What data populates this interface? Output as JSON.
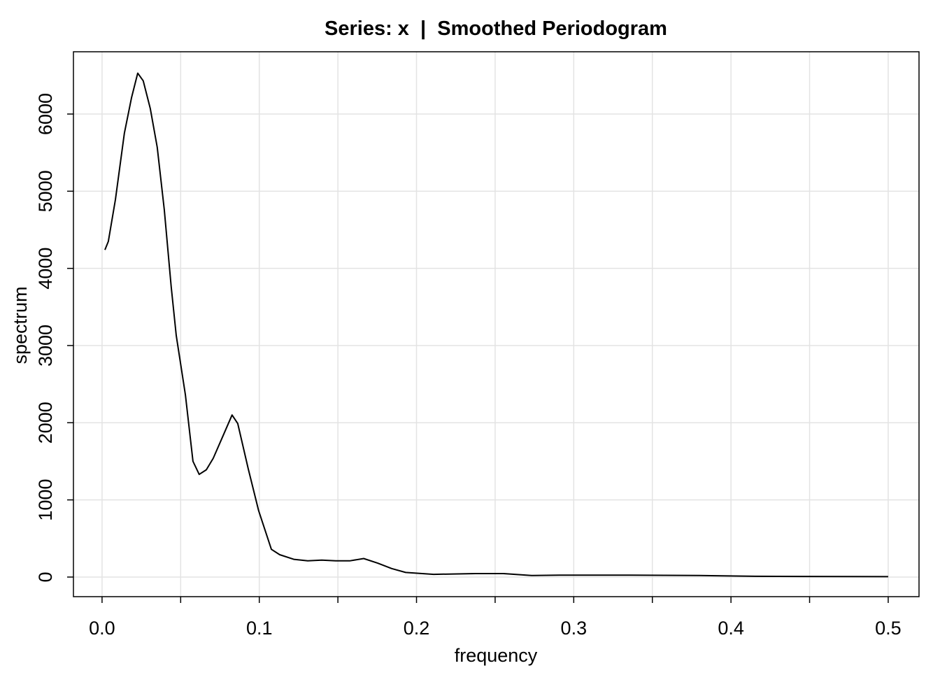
{
  "chart_data": {
    "type": "line",
    "title": "Series: x  |  Smoothed Periodogram",
    "x_label": "frequency",
    "y_label": "spectrum",
    "x": [
      0.0018,
      0.004,
      0.0085,
      0.0142,
      0.0187,
      0.0227,
      0.0262,
      0.0307,
      0.0351,
      0.0396,
      0.044,
      0.0472,
      0.053,
      0.0578,
      0.0618,
      0.0663,
      0.0707,
      0.0765,
      0.0827,
      0.0863,
      0.093,
      0.0996,
      0.1077,
      0.113,
      0.1219,
      0.1308,
      0.1397,
      0.1486,
      0.1575,
      0.1664,
      0.1753,
      0.1842,
      0.1931,
      0.2109,
      0.2375,
      0.2553,
      0.2731,
      0.2909,
      0.3354,
      0.3799,
      0.4155,
      0.5
    ],
    "series": [
      {
        "color": "#000000",
        "values": [
          4240,
          4350,
          4890,
          5750,
          6210,
          6530,
          6430,
          6070,
          5570,
          4760,
          3760,
          3130,
          2360,
          1500,
          1330,
          1390,
          1540,
          1810,
          2100,
          1990,
          1400,
          860,
          360,
          290,
          230,
          210,
          220,
          210,
          210,
          240,
          180,
          110,
          60,
          35,
          45,
          45,
          20,
          25,
          25,
          20,
          10,
          5
        ]
      }
    ],
    "xlim": [
      -0.0182,
      0.5196
    ],
    "ylim": [
      -254,
      6807
    ],
    "xticks": [
      {
        "value": 0,
        "label": "0.0"
      },
      0.1,
      0.2,
      0.3,
      0.4,
      0.5
    ],
    "xticks_minor": [
      0.05,
      0.15,
      0.25,
      0.35,
      0.45
    ],
    "yticks": [
      0,
      1000,
      2000,
      3000,
      4000,
      5000,
      6000
    ],
    "grid": true
  }
}
